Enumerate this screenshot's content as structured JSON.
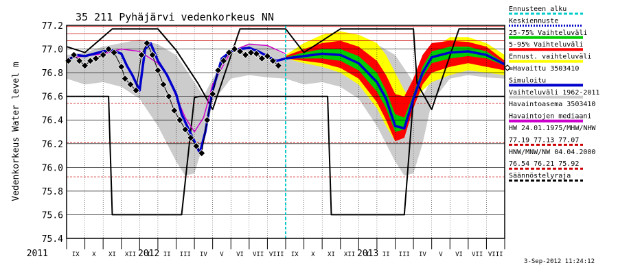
{
  "chart_data": {
    "type": "line",
    "title": "35 211 Pyhäjärvi vedenkorkeus NN",
    "ylabel": "Vedenkorkeus Water level m",
    "timestamp": "3-Sep-2012 11:24:12",
    "ylim": [
      75.4,
      77.2
    ],
    "xlim": [
      0,
      24
    ],
    "grid": true,
    "legend_position": "right",
    "y_ticks": [
      "75.4",
      "75.6",
      "75.8",
      "76.0",
      "76.2",
      "76.4",
      "76.6",
      "76.8",
      "77.0",
      "77.2"
    ],
    "year_labels": [
      {
        "text": "2011",
        "x": 0
      },
      {
        "text": "2012",
        "x": 4.5
      },
      {
        "text": "2013",
        "x": 16.5
      }
    ],
    "months": [
      "IX",
      "X",
      "XI",
      "XII",
      "I",
      "II",
      "III",
      "IV",
      "V",
      "VI",
      "VII",
      "VIII",
      "IX",
      "X",
      "XI",
      "XII",
      "I",
      "II",
      "III",
      "IV",
      "V",
      "VI",
      "VII",
      "VIII"
    ],
    "forecast_start": 12.0,
    "reference_levels": [
      {
        "name": "HW",
        "value": 77.19,
        "color": "#cc0000"
      },
      {
        "name": "MHW",
        "value": 77.13,
        "color": "#cc0000"
      },
      {
        "name": "NHW",
        "value": 77.07,
        "color": "#cc0000"
      },
      {
        "name": "HNW",
        "value": 76.54,
        "color": "#cc0000"
      },
      {
        "name": "MNW",
        "value": 76.21,
        "color": "#cc0000"
      },
      {
        "name": "NW",
        "value": 75.92,
        "color": "#cc0000"
      }
    ],
    "legend": [
      {
        "label": "Ennusteen alku",
        "color": "#00cccc",
        "style": "dashed"
      },
      {
        "label": "Keskiennuste",
        "color": "#0000cc",
        "style": "dotted"
      },
      {
        "label": "25-75% Vaihteluväli",
        "color": "#00cc00",
        "style": "solid"
      },
      {
        "label": "5-95% Vaihteluväli",
        "color": "#ff0000",
        "style": "solid"
      },
      {
        "label": "Ennust. vaihteluväli",
        "color": "#ffff00",
        "style": "solid"
      },
      {
        "label": "=Havaittu 3503410",
        "color": "#000000",
        "style": "marker"
      },
      {
        "label": "Simuloitu",
        "color": "#0000cc",
        "style": "solid"
      },
      {
        "label": "Vaihteluväli 1962-2011",
        "color": "#cccccc",
        "style": "solid"
      },
      {
        "label": "Havaintoasema 3503410",
        "color": "",
        "style": "none"
      },
      {
        "label": "Havaintojen mediaani",
        "color": "#cc00cc",
        "style": "solid"
      },
      {
        "label": "HW 24.01.1975/MHW/NHW",
        "color": "",
        "style": "none"
      },
      {
        "label": "77.19 77.13 77.07",
        "color": "#cc0000",
        "style": "dashed"
      },
      {
        "label": "HNW/MNW/NW 04.04.2000",
        "color": "",
        "style": "none"
      },
      {
        "label": "76.54 76.21 75.92",
        "color": "#cc0000",
        "style": "dashed"
      },
      {
        "label": "Säännöstelyraja",
        "color": "#000000",
        "style": "dashed"
      }
    ],
    "series": [
      {
        "name": "Säännöstelyraja upper",
        "color": "#000000",
        "x": [
          0,
          1,
          2.5,
          5,
          6,
          7.2,
          8,
          9.5,
          12,
          13,
          15,
          19,
          19.2,
          20,
          21.5,
          24
        ],
        "values": [
          77.02,
          76.97,
          77.17,
          77.17,
          76.99,
          76.71,
          76.49,
          77.17,
          77.17,
          76.97,
          77.17,
          77.17,
          76.71,
          76.49,
          77.17,
          77.17
        ]
      },
      {
        "name": "Säännöstelyraja lower",
        "color": "#000000",
        "x": [
          0,
          2.3,
          2.5,
          6.3,
          7.0,
          7.3,
          12,
          14.3,
          14.5,
          18.5,
          19.0,
          19.3,
          24
        ],
        "values": [
          76.6,
          76.6,
          75.6,
          75.6,
          76.59,
          76.6,
          76.6,
          76.6,
          75.6,
          75.6,
          76.59,
          76.6,
          76.6
        ]
      },
      {
        "name": "Vaihteluväli 1962-2011 upper",
        "color": "#cccccc",
        "x": [
          0,
          1,
          2,
          3,
          4,
          5,
          6,
          7,
          7.5,
          8,
          9,
          10,
          11,
          12,
          13,
          14,
          15,
          16,
          17,
          18,
          19,
          19.5,
          20,
          21,
          22,
          23,
          24
        ],
        "values": [
          76.95,
          76.97,
          77.02,
          77.05,
          77.08,
          77.04,
          76.95,
          76.72,
          76.6,
          76.75,
          76.98,
          77.05,
          77.03,
          76.95,
          76.97,
          77.02,
          77.05,
          77.08,
          77.04,
          76.95,
          76.72,
          76.6,
          76.75,
          76.98,
          77.05,
          77.03,
          76.95
        ]
      },
      {
        "name": "Vaihteluväli 1962-2011 lower",
        "color": "#cccccc",
        "x": [
          0,
          1,
          2,
          3,
          4,
          5,
          6,
          6.5,
          7,
          7.5,
          8,
          9,
          10,
          11,
          12,
          13,
          14,
          15,
          16,
          17,
          18,
          18.5,
          19,
          19.5,
          20,
          21,
          22,
          23,
          24
        ],
        "values": [
          76.75,
          76.7,
          76.72,
          76.68,
          76.58,
          76.35,
          76.05,
          75.93,
          75.95,
          76.2,
          76.55,
          76.75,
          76.78,
          76.76,
          76.75,
          76.7,
          76.72,
          76.68,
          76.58,
          76.35,
          76.05,
          75.93,
          75.95,
          76.2,
          76.55,
          76.75,
          76.78,
          76.76,
          76.75
        ]
      },
      {
        "name": "Havaintojen mediaani",
        "color": "#cc00cc",
        "x": [
          0,
          1,
          2,
          3,
          4,
          5,
          5.5,
          6,
          6.5,
          7,
          7.5,
          8,
          9,
          10,
          11,
          12
        ],
        "values": [
          76.92,
          76.94,
          76.96,
          77.0,
          76.98,
          76.88,
          76.78,
          76.6,
          76.42,
          76.3,
          76.42,
          76.7,
          76.98,
          77.04,
          77.03,
          76.96
        ]
      },
      {
        "name": "Ennust. vaihteluväli upper",
        "color": "#ffff00",
        "x": [
          12,
          13,
          14,
          15,
          16,
          17,
          17.5,
          18,
          18.5,
          19,
          19.5,
          20,
          21,
          22,
          23,
          24
        ],
        "values": [
          76.95,
          77.05,
          77.12,
          77.15,
          77.12,
          77.05,
          76.95,
          76.8,
          76.65,
          76.55,
          76.75,
          77.0,
          77.1,
          77.1,
          77.05,
          76.95
        ]
      },
      {
        "name": "Ennust. vaihteluväli lower",
        "color": "#ffff00",
        "x": [
          12,
          13,
          14,
          15,
          16,
          17,
          17.5,
          18,
          18.5,
          19,
          19.5,
          20,
          21,
          22,
          23,
          24
        ],
        "values": [
          76.92,
          76.88,
          76.85,
          76.8,
          76.7,
          76.5,
          76.35,
          76.22,
          76.3,
          76.55,
          76.65,
          76.72,
          76.78,
          76.82,
          76.8,
          76.78
        ]
      },
      {
        "name": "5-95% Vaihteluväli upper",
        "color": "#ff0000",
        "x": [
          12,
          13,
          14,
          15,
          16,
          17,
          17.5,
          18,
          18.5,
          19,
          19.5,
          20,
          21,
          22,
          23,
          24
        ],
        "values": [
          76.94,
          77.0,
          77.05,
          77.07,
          77.02,
          76.9,
          76.78,
          76.62,
          76.6,
          76.75,
          76.95,
          77.05,
          77.07,
          77.06,
          77.02,
          76.9
        ]
      },
      {
        "name": "5-95% Vaihteluväli lower",
        "color": "#ff0000",
        "x": [
          12,
          13,
          14,
          15,
          16,
          17,
          17.5,
          18,
          18.5,
          19,
          19.5,
          20,
          21,
          22,
          23,
          24
        ],
        "values": [
          76.92,
          76.9,
          76.88,
          76.84,
          76.75,
          76.55,
          76.4,
          76.22,
          76.25,
          76.5,
          76.7,
          76.8,
          76.85,
          76.88,
          76.85,
          76.82
        ]
      },
      {
        "name": "25-75% Vaihteluväli upper",
        "color": "#00cc00",
        "x": [
          12,
          13,
          14,
          15,
          16,
          17,
          17.5,
          18,
          18.5,
          19,
          19.5,
          20,
          21,
          22,
          23,
          24
        ],
        "values": [
          76.93,
          76.97,
          77.0,
          77.0,
          76.94,
          76.8,
          76.65,
          76.45,
          76.42,
          76.62,
          76.85,
          76.98,
          77.02,
          77.02,
          76.98,
          76.88
        ]
      },
      {
        "name": "25-75% Vaihteluväli lower",
        "color": "#00cc00",
        "x": [
          12,
          13,
          14,
          15,
          16,
          17,
          17.5,
          18,
          18.5,
          19,
          19.5,
          20,
          21,
          22,
          23,
          24
        ],
        "values": [
          76.92,
          76.92,
          76.92,
          76.9,
          76.82,
          76.64,
          76.5,
          76.3,
          76.32,
          76.55,
          76.76,
          76.88,
          76.92,
          76.94,
          76.92,
          76.86
        ]
      },
      {
        "name": "Keskiennuste",
        "color": "#0000cc",
        "x": [
          12,
          13,
          14,
          15,
          16,
          17,
          17.5,
          18,
          18.5,
          19,
          19.5,
          20,
          21,
          22,
          23,
          24
        ],
        "values": [
          76.92,
          76.94,
          76.96,
          76.95,
          76.88,
          76.72,
          76.58,
          76.35,
          76.33,
          76.58,
          76.8,
          76.93,
          76.97,
          76.98,
          76.95,
          76.87
        ]
      },
      {
        "name": "Simuloitu",
        "color": "#0000cc",
        "x": [
          0,
          0.5,
          1,
          1.5,
          2,
          2.5,
          3,
          3.3,
          3.6,
          4,
          4.3,
          4.6,
          5,
          5.5,
          6,
          6.3,
          6.6,
          7,
          7.3,
          7.6,
          8,
          8.5,
          9,
          9.5,
          10,
          10.5,
          11,
          11.5,
          12
        ],
        "values": [
          76.9,
          76.95,
          76.94,
          76.96,
          76.98,
          76.99,
          76.96,
          76.86,
          76.78,
          76.65,
          77.0,
          77.05,
          76.9,
          76.78,
          76.62,
          76.45,
          76.35,
          76.22,
          76.12,
          76.3,
          76.65,
          76.92,
          76.98,
          77.0,
          77.01,
          76.98,
          76.94,
          76.9,
          76.92
        ]
      },
      {
        "name": "Havaittu 3503410",
        "color": "#000000",
        "x": [
          0.1,
          0.4,
          0.7,
          1.0,
          1.3,
          1.6,
          2.0,
          2.3,
          2.6,
          3.0,
          3.2,
          3.5,
          3.8,
          4.1,
          4.4,
          4.7,
          5.0,
          5.3,
          5.6,
          5.9,
          6.2,
          6.5,
          6.8,
          7.1,
          7.4,
          7.7,
          8.0,
          8.3,
          8.6,
          8.9,
          9.2,
          9.5,
          9.8,
          10.1,
          10.4,
          10.7,
          11.0,
          11.3,
          11.6
        ],
        "values": [
          76.9,
          76.95,
          76.9,
          76.86,
          76.9,
          76.92,
          76.95,
          77.0,
          76.97,
          76.85,
          76.75,
          76.7,
          76.65,
          76.95,
          77.05,
          76.95,
          76.82,
          76.7,
          76.6,
          76.48,
          76.4,
          76.32,
          76.25,
          76.18,
          76.12,
          76.4,
          76.62,
          76.82,
          76.9,
          76.97,
          77.0,
          76.98,
          76.95,
          76.97,
          76.96,
          76.92,
          76.94,
          76.9,
          76.86
        ]
      }
    ]
  }
}
